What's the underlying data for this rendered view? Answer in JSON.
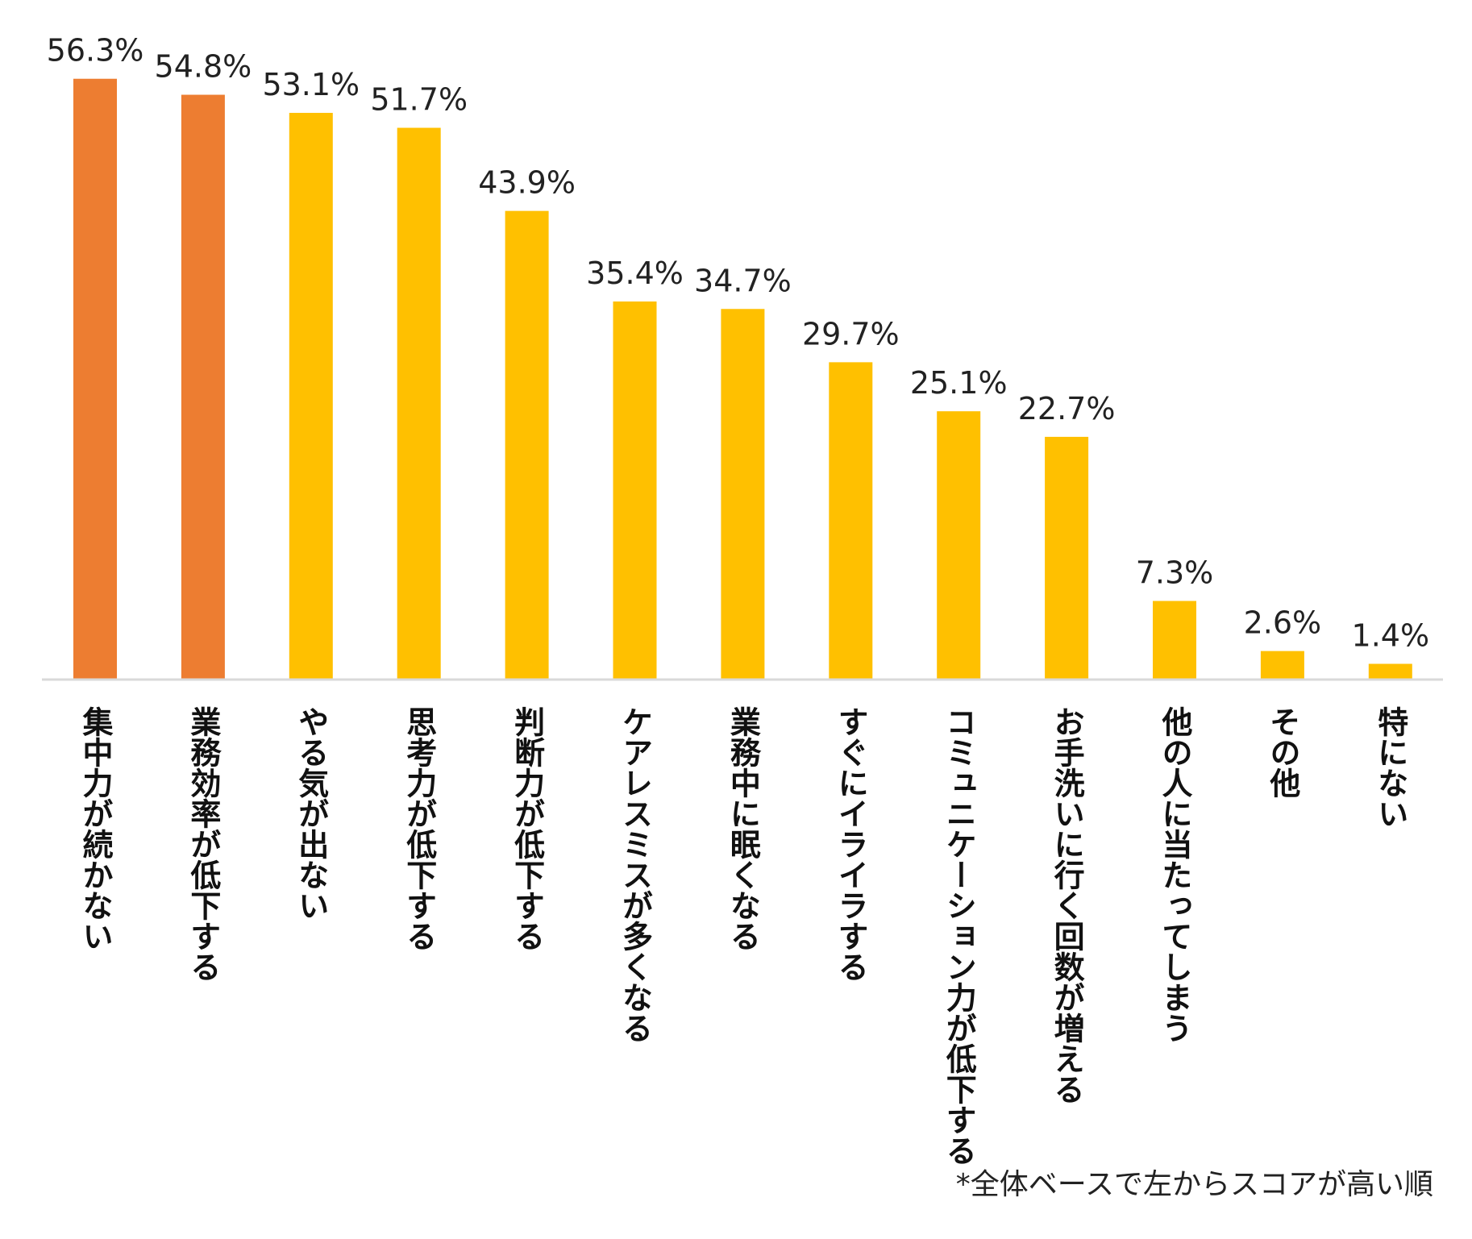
{
  "chart_data": {
    "type": "bar",
    "categories": [
      "集中力が続かない",
      "業務効率が低下する",
      "やる気が出ない",
      "思考力が低下する",
      "判断力が低下する",
      "ケアレスミスが多くなる",
      "業務中に眠くなる",
      "すぐにイライラする",
      "コミュニケーション力が低下する",
      "お手洗いに行く回数が増える",
      "他の人に当たってしまう",
      "その他",
      "特にない"
    ],
    "values": [
      56.3,
      54.8,
      53.1,
      51.7,
      43.9,
      35.4,
      34.7,
      29.7,
      25.1,
      22.7,
      7.3,
      2.6,
      1.4
    ],
    "value_labels": [
      "56.3%",
      "54.8%",
      "53.1%",
      "51.7%",
      "43.9%",
      "35.4%",
      "34.7%",
      "29.7%",
      "25.1%",
      "22.7%",
      "7.3%",
      "2.6%",
      "1.4%"
    ],
    "highlight_count": 2,
    "colors": {
      "highlight": "#ED7D31",
      "normal": "#FFC000",
      "axis": "#D9D9D9"
    },
    "ylim": [
      0,
      60
    ],
    "title": "",
    "xlabel": "",
    "ylabel": ""
  },
  "footnote": "*全体ベースで左からスコアが高い順"
}
